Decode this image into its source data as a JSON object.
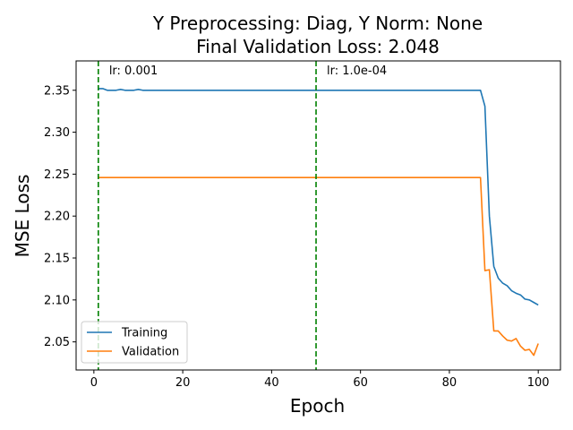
{
  "chart_data": {
    "type": "line",
    "title_line1": "Y Preprocessing: Diag, Y Norm: None",
    "title_line2": "Final Validation Loss: 2.048",
    "xlabel": "Epoch",
    "ylabel": "MSE Loss",
    "xlim": [
      -4,
      105
    ],
    "ylim": [
      2.0165,
      2.385
    ],
    "xticks": [
      0,
      20,
      40,
      60,
      80,
      100
    ],
    "xtick_labels": [
      "0",
      "20",
      "40",
      "60",
      "80",
      "100"
    ],
    "yticks": [
      2.05,
      2.1,
      2.15,
      2.2,
      2.25,
      2.3,
      2.35
    ],
    "ytick_labels": [
      "2.05",
      "2.10",
      "2.15",
      "2.20",
      "2.25",
      "2.30",
      "2.35"
    ],
    "grid": false,
    "legend_position": "lower-left",
    "series": [
      {
        "name": "Training",
        "color": "#1f77b4",
        "x": [
          1,
          2,
          3,
          4,
          5,
          6,
          7,
          8,
          9,
          10,
          11,
          12,
          13,
          14,
          15,
          16,
          17,
          18,
          19,
          20,
          21,
          22,
          23,
          24,
          25,
          26,
          27,
          28,
          29,
          30,
          31,
          32,
          33,
          34,
          35,
          36,
          37,
          38,
          39,
          40,
          41,
          42,
          43,
          44,
          45,
          46,
          47,
          48,
          49,
          50,
          51,
          52,
          53,
          54,
          55,
          56,
          57,
          58,
          59,
          60,
          61,
          62,
          63,
          64,
          65,
          66,
          67,
          68,
          69,
          70,
          71,
          72,
          73,
          74,
          75,
          76,
          77,
          78,
          79,
          80,
          81,
          82,
          83,
          84,
          85,
          86,
          87,
          88,
          89,
          90,
          91,
          92,
          93,
          94,
          95,
          96,
          97,
          98,
          99,
          100
        ],
        "y": [
          2.352,
          2.352,
          2.35,
          2.35,
          2.35,
          2.351,
          2.35,
          2.35,
          2.35,
          2.351,
          2.35,
          2.35,
          2.35,
          2.35,
          2.35,
          2.35,
          2.35,
          2.35,
          2.35,
          2.35,
          2.35,
          2.35,
          2.35,
          2.35,
          2.35,
          2.35,
          2.35,
          2.35,
          2.35,
          2.35,
          2.35,
          2.35,
          2.35,
          2.35,
          2.35,
          2.35,
          2.35,
          2.35,
          2.35,
          2.35,
          2.35,
          2.35,
          2.35,
          2.35,
          2.35,
          2.35,
          2.35,
          2.35,
          2.35,
          2.35,
          2.35,
          2.35,
          2.35,
          2.35,
          2.35,
          2.35,
          2.35,
          2.35,
          2.35,
          2.35,
          2.35,
          2.35,
          2.35,
          2.35,
          2.35,
          2.35,
          2.35,
          2.35,
          2.35,
          2.35,
          2.35,
          2.35,
          2.35,
          2.35,
          2.35,
          2.35,
          2.35,
          2.35,
          2.35,
          2.35,
          2.35,
          2.35,
          2.35,
          2.35,
          2.35,
          2.35,
          2.35,
          2.331,
          2.2,
          2.14,
          2.126,
          2.12,
          2.117,
          2.111,
          2.108,
          2.106,
          2.101,
          2.1,
          2.097,
          2.094
        ]
      },
      {
        "name": "Validation",
        "color": "#ff7f0e",
        "x": [
          1,
          2,
          3,
          4,
          5,
          6,
          7,
          8,
          9,
          10,
          11,
          12,
          13,
          14,
          15,
          16,
          17,
          18,
          19,
          20,
          21,
          22,
          23,
          24,
          25,
          26,
          27,
          28,
          29,
          30,
          31,
          32,
          33,
          34,
          35,
          36,
          37,
          38,
          39,
          40,
          41,
          42,
          43,
          44,
          45,
          46,
          47,
          48,
          49,
          50,
          51,
          52,
          53,
          54,
          55,
          56,
          57,
          58,
          59,
          60,
          61,
          62,
          63,
          64,
          65,
          66,
          67,
          68,
          69,
          70,
          71,
          72,
          73,
          74,
          75,
          76,
          77,
          78,
          79,
          80,
          81,
          82,
          83,
          84,
          85,
          86,
          87,
          88,
          89,
          90,
          91,
          92,
          93,
          94,
          95,
          96,
          97,
          98,
          99,
          100
        ],
        "y": [
          2.246,
          2.246,
          2.246,
          2.246,
          2.246,
          2.246,
          2.246,
          2.246,
          2.246,
          2.246,
          2.246,
          2.246,
          2.246,
          2.246,
          2.246,
          2.246,
          2.246,
          2.246,
          2.246,
          2.246,
          2.246,
          2.246,
          2.246,
          2.246,
          2.246,
          2.246,
          2.246,
          2.246,
          2.246,
          2.246,
          2.246,
          2.246,
          2.246,
          2.246,
          2.246,
          2.246,
          2.246,
          2.246,
          2.246,
          2.246,
          2.246,
          2.246,
          2.246,
          2.246,
          2.246,
          2.246,
          2.246,
          2.246,
          2.246,
          2.246,
          2.246,
          2.246,
          2.246,
          2.246,
          2.246,
          2.246,
          2.246,
          2.246,
          2.246,
          2.246,
          2.246,
          2.246,
          2.246,
          2.246,
          2.246,
          2.246,
          2.246,
          2.246,
          2.246,
          2.246,
          2.246,
          2.246,
          2.246,
          2.246,
          2.246,
          2.246,
          2.246,
          2.246,
          2.246,
          2.246,
          2.246,
          2.246,
          2.246,
          2.246,
          2.246,
          2.246,
          2.246,
          2.135,
          2.136,
          2.063,
          2.063,
          2.057,
          2.052,
          2.051,
          2.054,
          2.045,
          2.04,
          2.041,
          2.034,
          2.048
        ]
      }
    ],
    "vlines": [
      {
        "x": 1,
        "label": "lr: 0.001",
        "color": "#008000"
      },
      {
        "x": 50,
        "label": "lr: 1.0e-04",
        "color": "#008000"
      }
    ]
  }
}
